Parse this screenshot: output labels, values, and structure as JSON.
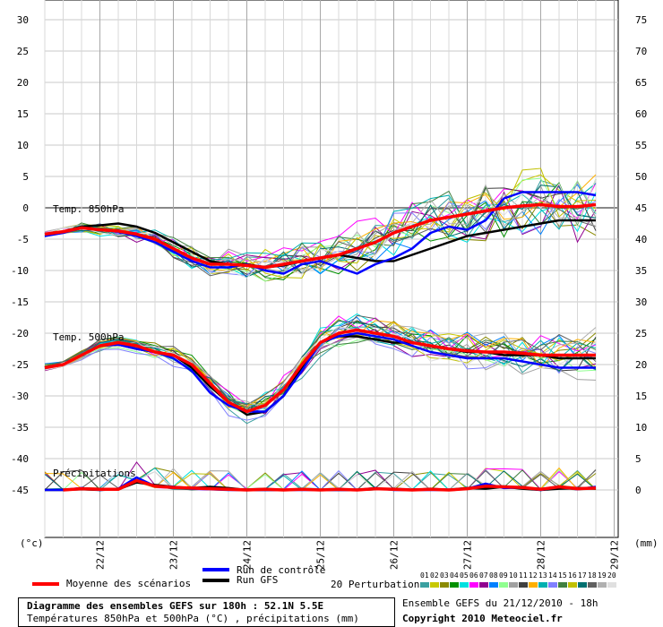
{
  "chart_data": {
    "type": "line",
    "left_axis_ticks": [
      "30",
      "25",
      "20",
      "15",
      "10",
      "5",
      "0",
      "-5",
      "-10",
      "-15",
      "-20",
      "-25",
      "-30",
      "-35",
      "-40",
      "-45"
    ],
    "right_axis_ticks": [
      "75",
      "70",
      "65",
      "60",
      "55",
      "50",
      "45",
      "40",
      "35",
      "30",
      "25",
      "20",
      "15",
      "10",
      "5",
      "0"
    ],
    "left_unit": "(°c)",
    "right_unit": "(mm)",
    "x_tick_labels": [
      "22/12",
      "23/12",
      "24/12",
      "25/12",
      "26/12",
      "27/12",
      "28/12",
      "29/12"
    ],
    "panels": {
      "t850": "Temp. 850hPa",
      "t500": "Temp. 500hPa",
      "precip": "Précipitations"
    },
    "colors": {
      "mean": "#ff0000",
      "control": "#0000ff",
      "gfs": "#000000"
    },
    "x_steps_6h": [
      0,
      1,
      2,
      3,
      4,
      5,
      6,
      7,
      8,
      9,
      10,
      11,
      12,
      13,
      14,
      15,
      16,
      17,
      18,
      19,
      20,
      21,
      22,
      23,
      24,
      25,
      26,
      27,
      28,
      29,
      30
    ],
    "series": [
      {
        "name": "Moyenne des scénarios",
        "panel": "t850",
        "values": [
          -4.2,
          -3.8,
          -3.2,
          -3.5,
          -3.7,
          -4.2,
          -5,
          -6.5,
          -8,
          -9,
          -9,
          -9.2,
          -9.5,
          -9,
          -8.5,
          -8,
          -7.5,
          -6.5,
          -5.5,
          -4,
          -3,
          -2,
          -1.5,
          -1,
          -0.5,
          0,
          0.3,
          0.5,
          0.2,
          0.2,
          0.5
        ]
      },
      {
        "name": "Run de contrôle",
        "panel": "t850",
        "values": [
          -4.5,
          -4,
          -3.2,
          -3.5,
          -3.8,
          -4.5,
          -5.5,
          -7,
          -8.5,
          -9.5,
          -9.5,
          -9,
          -10,
          -10.5,
          -9,
          -8.5,
          -9.5,
          -10.5,
          -9,
          -8,
          -6.5,
          -4,
          -3,
          -3.5,
          -2,
          1.5,
          2.5,
          2.5,
          2.5,
          2.5,
          2
        ]
      },
      {
        "name": "Run GFS",
        "panel": "t850",
        "values": [
          -4.2,
          -3.8,
          -3,
          -2.8,
          -2.5,
          -3,
          -4,
          -5.5,
          -7,
          -8.5,
          -9,
          -9,
          -9.5,
          -9.2,
          -8.5,
          -8,
          -7.5,
          -8,
          -8.5,
          -8.5,
          -7.5,
          -6.5,
          -5.5,
          -4.5,
          -4,
          -3.5,
          -3,
          -2.5,
          -2,
          -2,
          -2
        ]
      },
      {
        "name": "Moyenne des scénarios",
        "panel": "t500",
        "values": [
          -25.5,
          -25,
          -23.5,
          -22,
          -21.5,
          -22,
          -23,
          -23.5,
          -25,
          -28,
          -31,
          -32.5,
          -31.5,
          -29,
          -25,
          -21.5,
          -20,
          -19.5,
          -20,
          -20.5,
          -21.5,
          -22,
          -22.5,
          -22.8,
          -23,
          -23,
          -23.2,
          -23.5,
          -23.5,
          -23.5,
          -23.5
        ]
      },
      {
        "name": "Run de contrôle",
        "panel": "t500",
        "values": [
          -25.5,
          -25,
          -23.5,
          -22,
          -21.8,
          -22.5,
          -23,
          -24,
          -26,
          -29.5,
          -31.5,
          -32.5,
          -32.5,
          -30,
          -26,
          -21.5,
          -20.5,
          -20,
          -20.5,
          -21,
          -22,
          -23,
          -23.5,
          -24,
          -24,
          -24,
          -24.5,
          -25,
          -25.5,
          -25.5,
          -25.5
        ]
      },
      {
        "name": "Run GFS",
        "panel": "t500",
        "values": [
          -25.5,
          -25,
          -23.5,
          -22,
          -21.8,
          -22.5,
          -23,
          -23.5,
          -25.5,
          -28.5,
          -31,
          -33,
          -32.5,
          -30,
          -25.5,
          -21.5,
          -20.5,
          -20.5,
          -21,
          -21.5,
          -21.5,
          -22,
          -22.5,
          -23,
          -23,
          -23.5,
          -23.5,
          -23.5,
          -24,
          -24,
          -24
        ]
      },
      {
        "name": "Moyenne des scénarios",
        "panel": "precip",
        "values": [
          0,
          0,
          0.2,
          0.1,
          0.1,
          1.5,
          0.6,
          0.4,
          0.3,
          0.2,
          0.1,
          0,
          0.1,
          0,
          0.1,
          0,
          0.1,
          0,
          0.2,
          0.1,
          0,
          0.1,
          0,
          0.2,
          0.6,
          0.5,
          0.4,
          0.1,
          0.5,
          0.2,
          0.3
        ]
      },
      {
        "name": "Run de contrôle",
        "panel": "precip",
        "values": [
          0,
          0,
          0.3,
          0,
          0.2,
          2.0,
          0.6,
          0.5,
          0.2,
          0.1,
          0,
          0,
          0,
          0,
          0,
          0,
          0,
          0,
          0.3,
          0,
          0,
          0,
          0,
          0.2,
          1.0,
          0.3,
          0.4,
          0,
          0.5,
          0.1,
          0.5
        ]
      },
      {
        "name": "Run GFS",
        "panel": "precip",
        "values": [
          0,
          0,
          0.1,
          0,
          0.1,
          1.2,
          0.8,
          0.5,
          0.3,
          0.5,
          0.3,
          0,
          0,
          0,
          0.1,
          0,
          0,
          0,
          0.1,
          0.2,
          0,
          0.2,
          0,
          0.3,
          0.2,
          0.5,
          0.2,
          0,
          0.2,
          0.3,
          0.2
        ]
      }
    ]
  },
  "legend": {
    "mean_label": "Moyenne des scénarios",
    "control_label": "Run de contrôle",
    "gfs_label": "Run GFS",
    "perturb_label": "20 Perturbations",
    "perturb_numbers": [
      "01",
      "02",
      "03",
      "04",
      "05",
      "06",
      "07",
      "08",
      "09",
      "10",
      "11",
      "12",
      "13",
      "14",
      "15",
      "16",
      "17",
      "18",
      "19",
      "20"
    ],
    "perturb_colors": [
      "#3aa0a0",
      "#c8c800",
      "#8a8a00",
      "#009000",
      "#00e0e0",
      "#ff00ff",
      "#900090",
      "#0080ff",
      "#90ff90",
      "#a0a0a0",
      "#404040",
      "#ffb000",
      "#00b0b0",
      "#8080ff",
      "#408040",
      "#c0c000",
      "#007070",
      "#606060",
      "#b0b0b0",
      "#e0e0e0"
    ]
  },
  "footer": {
    "title_line1": "Diagramme des ensembles GEFS sur 180h : 52.1N 5.5E",
    "title_line2": "Températures 850hPa et 500hPa (°C) , précipitations (mm)",
    "run_info": "Ensemble GEFS du 21/12/2010 - 18h",
    "copyright": "Copyright 2010 Meteociel.fr"
  }
}
